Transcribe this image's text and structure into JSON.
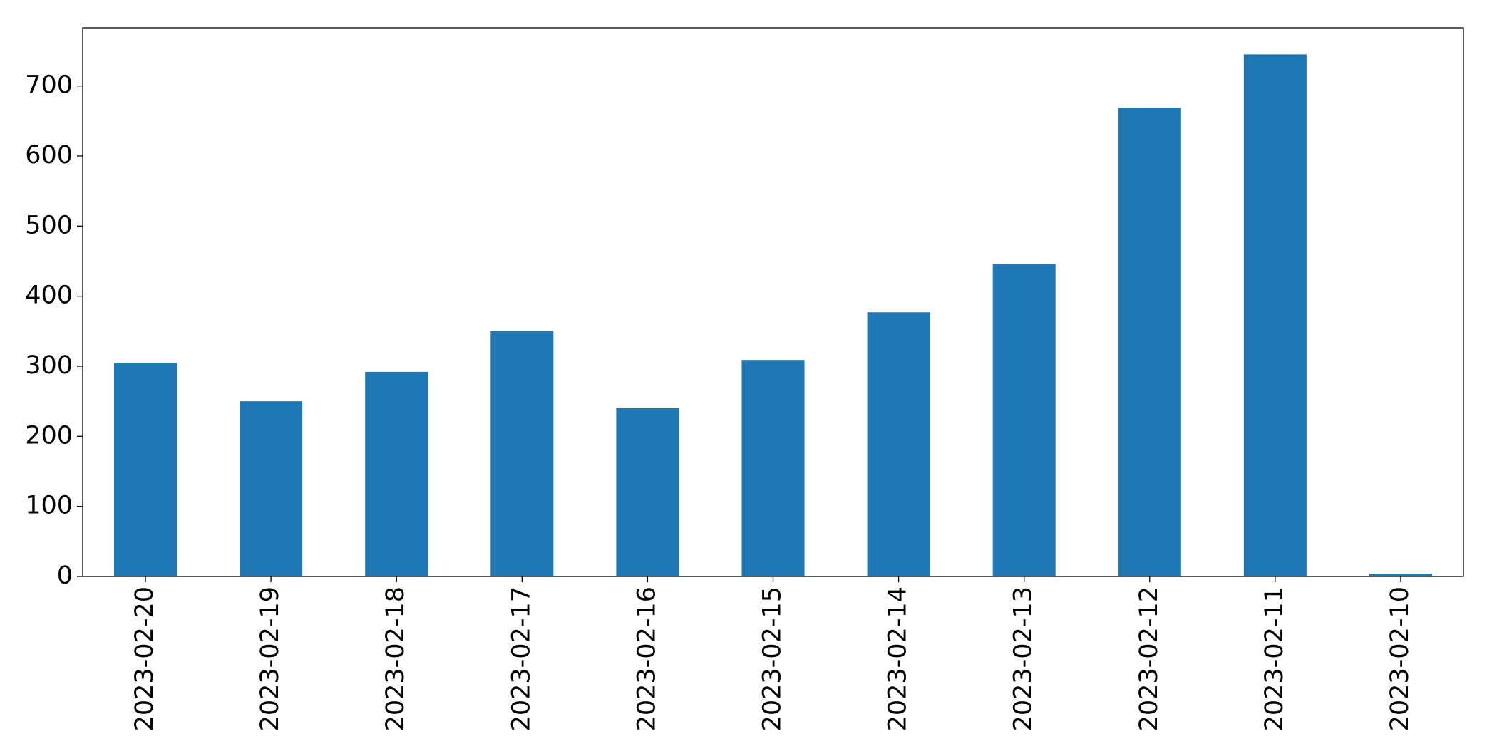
{
  "chart_data": {
    "type": "bar",
    "categories": [
      "2023-02-20",
      "2023-02-19",
      "2023-02-18",
      "2023-02-17",
      "2023-02-16",
      "2023-02-15",
      "2023-02-14",
      "2023-02-13",
      "2023-02-12",
      "2023-02-11",
      "2023-02-10"
    ],
    "values": [
      305,
      250,
      292,
      350,
      240,
      309,
      377,
      446,
      669,
      745,
      4
    ],
    "color": "#1f77b4",
    "ylim": [
      0,
      783
    ],
    "yticks": [
      0,
      100,
      200,
      300,
      400,
      500,
      600,
      700
    ],
    "grid": false
  }
}
